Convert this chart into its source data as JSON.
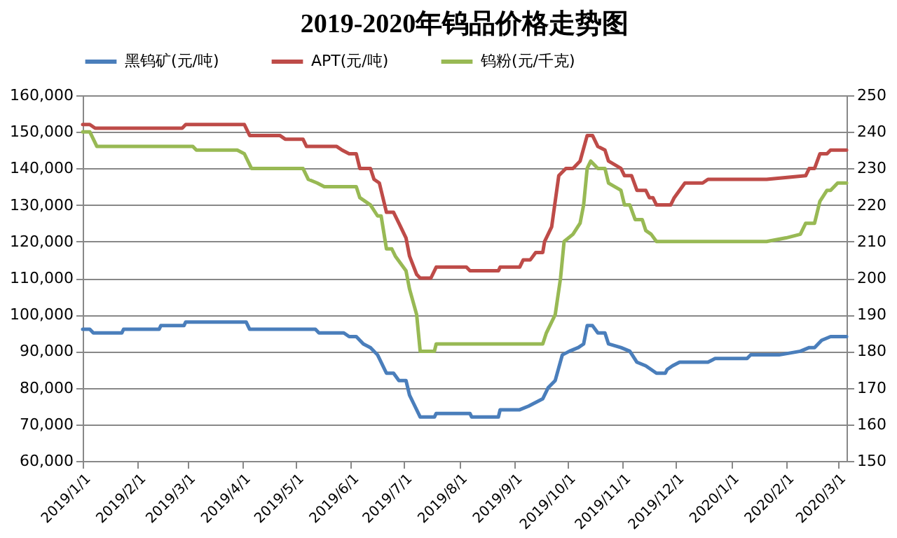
{
  "chart_data": {
    "type": "line",
    "title": "2019-2020年钨品价格走势图",
    "xlim": [
      "2019-01-01",
      "2020-03-06"
    ],
    "xticks": [
      {
        "value": "2019-01-01",
        "label": "2019/1/1"
      },
      {
        "value": "2019-02-01",
        "label": "2019/2/1"
      },
      {
        "value": "2019-03-01",
        "label": "2019/3/1"
      },
      {
        "value": "2019-04-01",
        "label": "2019/4/1"
      },
      {
        "value": "2019-05-01",
        "label": "2019/5/1"
      },
      {
        "value": "2019-06-01",
        "label": "2019/6/1"
      },
      {
        "value": "2019-07-01",
        "label": "2019/7/1"
      },
      {
        "value": "2019-08-01",
        "label": "2019/8/1"
      },
      {
        "value": "2019-09-01",
        "label": "2019/9/1"
      },
      {
        "value": "2019-10-01",
        "label": "2019/10/1"
      },
      {
        "value": "2019-11-01",
        "label": "2019/11/1"
      },
      {
        "value": "2019-12-01",
        "label": "2019/12/1"
      },
      {
        "value": "2020-01-01",
        "label": "2020/1/1"
      },
      {
        "value": "2020-02-01",
        "label": "2020/2/1"
      },
      {
        "value": "2020-03-01",
        "label": "2020/3/1"
      }
    ],
    "ylim": [
      60000,
      160000
    ],
    "yticks": [
      {
        "value": 60000,
        "label": "60,000"
      },
      {
        "value": 70000,
        "label": "70,000"
      },
      {
        "value": 80000,
        "label": "80,000"
      },
      {
        "value": 90000,
        "label": "90,000"
      },
      {
        "value": 100000,
        "label": "100,000"
      },
      {
        "value": 110000,
        "label": "110,000"
      },
      {
        "value": 120000,
        "label": "120,000"
      },
      {
        "value": 130000,
        "label": "130,000"
      },
      {
        "value": 140000,
        "label": "140,000"
      },
      {
        "value": 150000,
        "label": "150,000"
      },
      {
        "value": 160000,
        "label": "160,000"
      }
    ],
    "y2lim": [
      150,
      250
    ],
    "y2ticks": [
      150,
      160,
      170,
      180,
      190,
      200,
      210,
      220,
      230,
      240,
      250
    ],
    "grid": "y",
    "legend": "top",
    "series": [
      {
        "name": "黑钨矿(元/吨)",
        "color": "#4a7ebb",
        "x": [
          "2019-01-01",
          "2019-01-05",
          "2019-01-07",
          "2019-01-23",
          "2019-01-24",
          "2019-02-13",
          "2019-02-14",
          "2019-02-27",
          "2019-02-28",
          "2019-04-03",
          "2019-04-05",
          "2019-05-12",
          "2019-05-14",
          "2019-05-28",
          "2019-05-31",
          "2019-06-04",
          "2019-06-08",
          "2019-06-12",
          "2019-06-16",
          "2019-06-21",
          "2019-06-25",
          "2019-06-28",
          "2019-07-02",
          "2019-07-04",
          "2019-07-06",
          "2019-07-10",
          "2019-07-18",
          "2019-07-19",
          "2019-08-07",
          "2019-08-08",
          "2019-08-23",
          "2019-08-24",
          "2019-09-04",
          "2019-09-09",
          "2019-09-13",
          "2019-09-17",
          "2019-09-20",
          "2019-09-24",
          "2019-09-28",
          "2019-10-02",
          "2019-10-07",
          "2019-10-10",
          "2019-10-12",
          "2019-10-15",
          "2019-10-18",
          "2019-10-22",
          "2019-10-24",
          "2019-10-31",
          "2019-11-05",
          "2019-11-09",
          "2019-11-14",
          "2019-11-17",
          "2019-11-20",
          "2019-11-25",
          "2019-11-26",
          "2019-11-29",
          "2019-12-03",
          "2019-12-19",
          "2019-12-23",
          "2020-01-10",
          "2020-01-12",
          "2020-01-28",
          "2020-02-09",
          "2020-02-14",
          "2020-02-17",
          "2020-02-21",
          "2020-02-26",
          "2020-03-06"
        ],
        "values": [
          96000,
          96000,
          95000,
          95000,
          96000,
          96000,
          97000,
          97000,
          98000,
          98000,
          96000,
          96000,
          95000,
          95000,
          94000,
          94000,
          92000,
          91000,
          89000,
          84000,
          84000,
          82000,
          82000,
          78000,
          76000,
          72000,
          72000,
          73000,
          73000,
          72000,
          72000,
          74000,
          74000,
          75000,
          76000,
          77000,
          80000,
          82000,
          89000,
          90000,
          91000,
          92000,
          97000,
          97000,
          95000,
          95000,
          92000,
          91000,
          90000,
          87000,
          86000,
          85000,
          84000,
          84000,
          85000,
          86000,
          87000,
          87000,
          88000,
          88000,
          89000,
          89000,
          90000,
          91000,
          91000,
          93000,
          94000,
          94000
        ]
      },
      {
        "name": "APT(元/吨)",
        "color": "#be4b48",
        "x": [
          "2019-01-01",
          "2019-01-05",
          "2019-01-08",
          "2019-02-26",
          "2019-02-28",
          "2019-04-02",
          "2019-04-05",
          "2019-04-22",
          "2019-04-25",
          "2019-05-05",
          "2019-05-07",
          "2019-05-24",
          "2019-05-27",
          "2019-05-31",
          "2019-06-04",
          "2019-06-06",
          "2019-06-12",
          "2019-06-14",
          "2019-06-17",
          "2019-06-21",
          "2019-06-25",
          "2019-06-28",
          "2019-07-02",
          "2019-07-04",
          "2019-07-08",
          "2019-07-10",
          "2019-07-16",
          "2019-07-19",
          "2019-08-05",
          "2019-08-07",
          "2019-08-23",
          "2019-08-24",
          "2019-09-04",
          "2019-09-06",
          "2019-09-10",
          "2019-09-13",
          "2019-09-17",
          "2019-09-18",
          "2019-09-22",
          "2019-09-26",
          "2019-09-30",
          "2019-10-04",
          "2019-10-06",
          "2019-10-08",
          "2019-10-12",
          "2019-10-15",
          "2019-10-18",
          "2019-10-22",
          "2019-10-24",
          "2019-10-31",
          "2019-11-02",
          "2019-11-06",
          "2019-11-09",
          "2019-11-14",
          "2019-11-16",
          "2019-11-18",
          "2019-11-20",
          "2019-11-28",
          "2019-11-30",
          "2019-12-03",
          "2019-12-06",
          "2019-12-16",
          "2019-12-19",
          "2020-01-21",
          "2020-02-12",
          "2020-02-14",
          "2020-02-17",
          "2020-02-20",
          "2020-02-24",
          "2020-02-26",
          "2020-03-06"
        ],
        "values": [
          152000,
          152000,
          151000,
          151000,
          152000,
          152000,
          149000,
          149000,
          148000,
          148000,
          146000,
          146000,
          145000,
          144000,
          144000,
          140000,
          140000,
          137000,
          136000,
          128000,
          128000,
          125000,
          121000,
          116000,
          111000,
          110000,
          110000,
          113000,
          113000,
          112000,
          112000,
          113000,
          113000,
          115000,
          115000,
          117000,
          117000,
          120000,
          124000,
          138000,
          140000,
          140000,
          141000,
          142000,
          149000,
          149000,
          146000,
          145000,
          142000,
          140000,
          138000,
          138000,
          134000,
          134000,
          132000,
          132000,
          130000,
          130000,
          132000,
          134000,
          136000,
          136000,
          137000,
          137000,
          138000,
          140000,
          140000,
          144000,
          144000,
          145000,
          145000
        ]
      },
      {
        "name": "钨粉(元/千克)",
        "color": "#98b954",
        "axis": "y2",
        "x": [
          "2019-01-01",
          "2019-01-05",
          "2019-01-09",
          "2019-03-04",
          "2019-03-06",
          "2019-03-29",
          "2019-04-02",
          "2019-04-06",
          "2019-05-05",
          "2019-05-08",
          "2019-05-13",
          "2019-05-17",
          "2019-06-04",
          "2019-06-06",
          "2019-06-12",
          "2019-06-16",
          "2019-06-18",
          "2019-06-21",
          "2019-06-24",
          "2019-06-26",
          "2019-07-02",
          "2019-07-04",
          "2019-07-08",
          "2019-07-10",
          "2019-07-18",
          "2019-07-19",
          "2019-09-17",
          "2019-09-19",
          "2019-09-24",
          "2019-09-27",
          "2019-09-29",
          "2019-10-04",
          "2019-10-08",
          "2019-10-10",
          "2019-10-12",
          "2019-10-14",
          "2019-10-18",
          "2019-10-22",
          "2019-10-24",
          "2019-10-31",
          "2019-11-02",
          "2019-11-05",
          "2019-11-08",
          "2019-11-12",
          "2019-11-14",
          "2019-11-17",
          "2019-11-20",
          "2020-01-21",
          "2020-02-01",
          "2020-02-09",
          "2020-02-12",
          "2020-02-17",
          "2020-02-20",
          "2020-02-24",
          "2020-02-26",
          "2020-03-01",
          "2020-03-06"
        ],
        "values": [
          240,
          240,
          236,
          236,
          235,
          235,
          234,
          230,
          230,
          227,
          226,
          225,
          225,
          222,
          220,
          217,
          217,
          208,
          208,
          206,
          202,
          197,
          190,
          180,
          180,
          182,
          182,
          185,
          190,
          200,
          210,
          212,
          215,
          220,
          230,
          232,
          230,
          230,
          226,
          224,
          220,
          220,
          216,
          216,
          213,
          212,
          210,
          210,
          211,
          212,
          215,
          215,
          221,
          224,
          224,
          226,
          226
        ]
      }
    ]
  }
}
